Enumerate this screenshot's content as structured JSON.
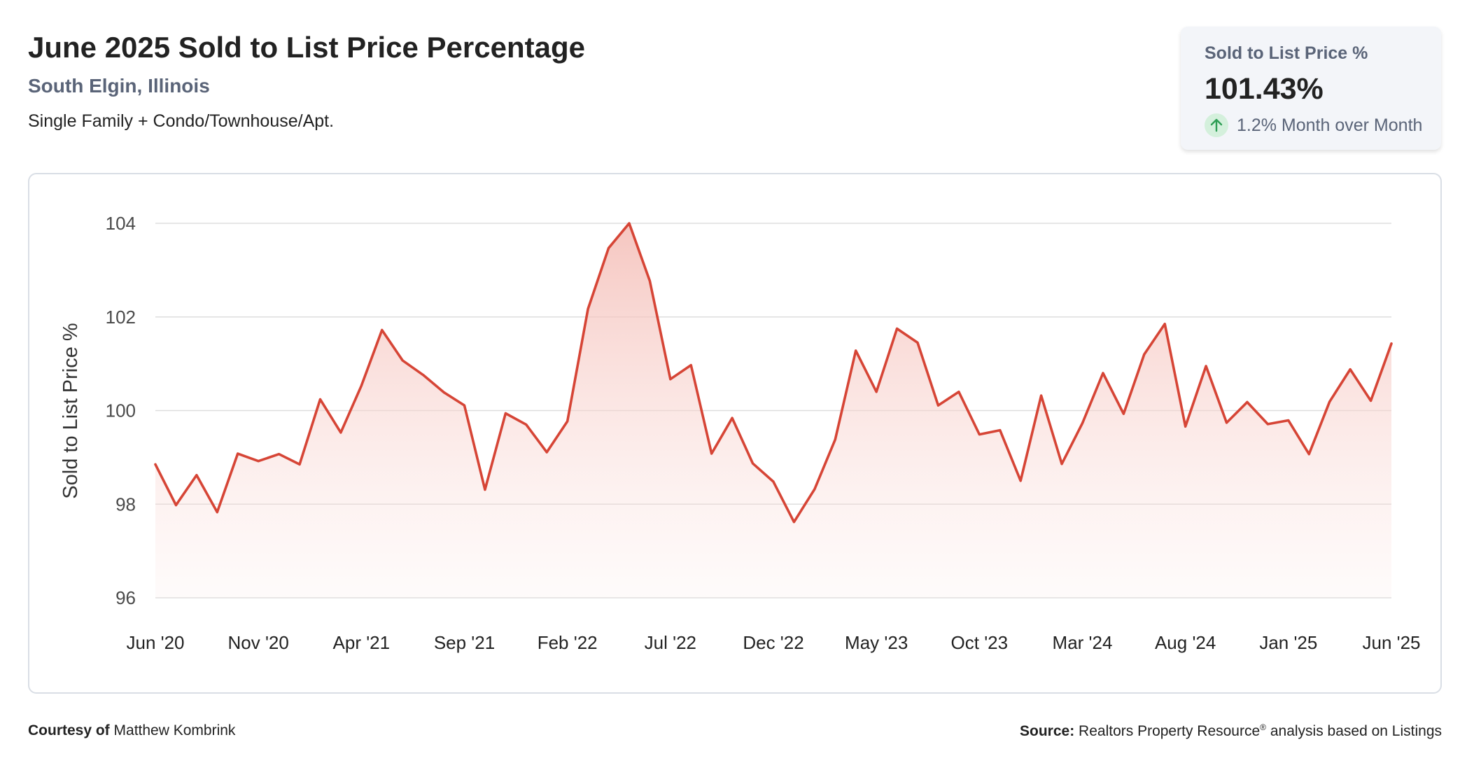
{
  "header": {
    "title": "June 2025 Sold to List Price Percentage",
    "location": "South Elgin, Illinois",
    "property_type": "Single Family + Condo/Townhouse/Apt."
  },
  "kpi": {
    "label": "Sold to List Price %",
    "value": "101.43%",
    "change": "1.2% Month over Month",
    "icon": "arrow-up-icon",
    "change_color": "#2e9e55"
  },
  "footer": {
    "courtesy_label": "Courtesy of",
    "courtesy_name": "Matthew Kombrink",
    "source_label": "Source:",
    "source_text": "Realtors Property Resource",
    "source_mark": "®",
    "source_suffix": "analysis based on Listings"
  },
  "colors": {
    "line": "#d64536",
    "area": "#f5c6c0",
    "grid": "#dedede"
  },
  "chart_data": {
    "type": "area",
    "title": "June 2025 Sold to List Price Percentage",
    "ylabel": "Sold to List Price %",
    "xlabel": "",
    "ylim": [
      96,
      104
    ],
    "y_ticks": [
      96,
      98,
      100,
      102,
      104
    ],
    "x_tick_labels": [
      "Jun '20",
      "Nov '20",
      "Apr '21",
      "Sep '21",
      "Feb '22",
      "Jul '22",
      "Dec '22",
      "May '23",
      "Oct '23",
      "Mar '24",
      "Aug '24",
      "Jan '25",
      "Jun '25"
    ],
    "grid": true,
    "legend": "none",
    "x": [
      "Jun '20",
      "Jul '20",
      "Aug '20",
      "Sep '20",
      "Oct '20",
      "Nov '20",
      "Dec '20",
      "Jan '21",
      "Feb '21",
      "Mar '21",
      "Apr '21",
      "May '21",
      "Jun '21",
      "Jul '21",
      "Aug '21",
      "Sep '21",
      "Oct '21",
      "Nov '21",
      "Dec '21",
      "Jan '22",
      "Feb '22",
      "Mar '22",
      "Apr '22",
      "May '22",
      "Jun '22",
      "Jul '22",
      "Aug '22",
      "Sep '22",
      "Oct '22",
      "Nov '22",
      "Dec '22",
      "Jan '23",
      "Feb '23",
      "Mar '23",
      "Apr '23",
      "May '23",
      "Jun '23",
      "Jul '23",
      "Aug '23",
      "Sep '23",
      "Oct '23",
      "Nov '23",
      "Dec '23",
      "Jan '24",
      "Feb '24",
      "Mar '24",
      "Apr '24",
      "May '24",
      "Jun '24",
      "Jul '24",
      "Aug '24",
      "Sep '24",
      "Oct '24",
      "Nov '24",
      "Dec '24",
      "Jan '25",
      "Feb '25",
      "Mar '25",
      "Apr '25",
      "May '25",
      "Jun '25"
    ],
    "series": [
      {
        "values": [
          98.85,
          97.98,
          98.62,
          97.83,
          99.08,
          98.92,
          99.07,
          98.85,
          100.24,
          99.53,
          100.53,
          101.72,
          101.07,
          100.76,
          100.39,
          100.11,
          98.31,
          99.94,
          99.7,
          99.11,
          99.77,
          102.17,
          103.47,
          104.0,
          102.77,
          100.67,
          100.97,
          99.08,
          99.84,
          98.87,
          98.48,
          97.62,
          98.32,
          99.38,
          101.28,
          100.4,
          101.75,
          101.45,
          100.11,
          100.4,
          99.49,
          99.58,
          98.5,
          100.32,
          98.86,
          99.73,
          100.8,
          99.93,
          101.2,
          101.85,
          99.66,
          100.95,
          99.74,
          100.18,
          99.71,
          99.79,
          99.07,
          100.19,
          100.88,
          100.21,
          101.43
        ]
      }
    ]
  }
}
